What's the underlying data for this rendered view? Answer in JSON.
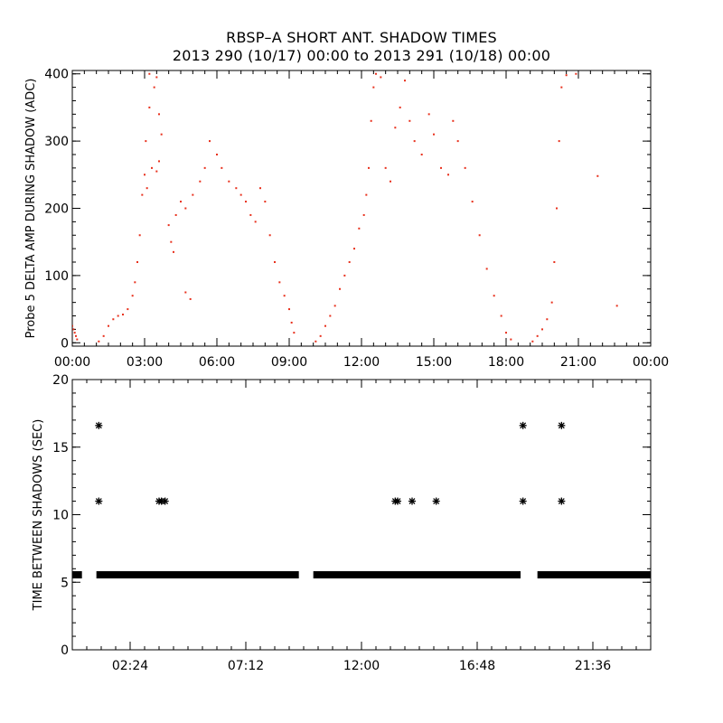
{
  "title": "RBSP–A SHORT ANT. SHADOW TIMES",
  "subtitle": "2013 290 (10/17) 00:00 to 2013 291 (10/18) 00:00",
  "colors": {
    "scatter": "#e8301c",
    "marker": "#000000",
    "axis": "#000000",
    "background": "#ffffff"
  },
  "chart_data": [
    {
      "type": "scatter",
      "title": "RBSP–A SHORT ANT. SHADOW TIMES",
      "ylabel": "Probe 5 DELTA AMP DURING SHADOW (ADC)",
      "xlabel": "",
      "x_unit": "hours since 2013-10-17 00:00",
      "xlim": [
        0,
        24
      ],
      "ylim": [
        -5,
        405
      ],
      "grid": false,
      "x_ticks": [
        0,
        3,
        6,
        9,
        12,
        15,
        18,
        21,
        24
      ],
      "x_tick_labels": [
        "00:00",
        "03:00",
        "06:00",
        "09:00",
        "12:00",
        "15:00",
        "18:00",
        "21:00",
        "00:00"
      ],
      "y_ticks": [
        0,
        100,
        200,
        300,
        400
      ],
      "y_tick_labels": [
        "0",
        "100",
        "200",
        "300",
        "400"
      ],
      "series": [
        {
          "color": "#e8301c",
          "points": [
            [
              0.0,
              25
            ],
            [
              0.05,
              20
            ],
            [
              0.1,
              15
            ],
            [
              0.15,
              10
            ],
            [
              0.2,
              5
            ],
            [
              1.1,
              2
            ],
            [
              1.3,
              10
            ],
            [
              1.5,
              25
            ],
            [
              1.7,
              35
            ],
            [
              1.9,
              40
            ],
            [
              2.1,
              42
            ],
            [
              2.3,
              50
            ],
            [
              2.5,
              70
            ],
            [
              2.6,
              90
            ],
            [
              2.7,
              120
            ],
            [
              2.8,
              160
            ],
            [
              2.9,
              220
            ],
            [
              3.0,
              250
            ],
            [
              3.1,
              230
            ],
            [
              3.3,
              260
            ],
            [
              3.5,
              255
            ],
            [
              3.6,
              270
            ],
            [
              3.05,
              300
            ],
            [
              3.2,
              350
            ],
            [
              3.4,
              380
            ],
            [
              3.6,
              340
            ],
            [
              3.7,
              310
            ],
            [
              3.2,
              400
            ],
            [
              3.5,
              395
            ],
            [
              4.0,
              175
            ],
            [
              4.1,
              150
            ],
            [
              4.2,
              135
            ],
            [
              4.3,
              190
            ],
            [
              4.5,
              210
            ],
            [
              4.7,
              200
            ],
            [
              5.0,
              220
            ],
            [
              5.3,
              240
            ],
            [
              5.5,
              260
            ],
            [
              5.7,
              300
            ],
            [
              6.0,
              280
            ],
            [
              6.2,
              260
            ],
            [
              6.5,
              240
            ],
            [
              6.8,
              230
            ],
            [
              7.0,
              220
            ],
            [
              7.2,
              210
            ],
            [
              7.4,
              190
            ],
            [
              7.6,
              180
            ],
            [
              7.8,
              230
            ],
            [
              8.0,
              210
            ],
            [
              8.2,
              160
            ],
            [
              8.4,
              120
            ],
            [
              8.6,
              90
            ],
            [
              8.8,
              70
            ],
            [
              9.0,
              50
            ],
            [
              9.1,
              30
            ],
            [
              9.2,
              15
            ],
            [
              10.1,
              2
            ],
            [
              10.3,
              10
            ],
            [
              10.5,
              25
            ],
            [
              10.7,
              40
            ],
            [
              10.9,
              55
            ],
            [
              11.1,
              80
            ],
            [
              11.3,
              100
            ],
            [
              11.5,
              120
            ],
            [
              11.7,
              140
            ],
            [
              11.9,
              170
            ],
            [
              12.1,
              190
            ],
            [
              12.2,
              220
            ],
            [
              12.3,
              260
            ],
            [
              12.4,
              330
            ],
            [
              12.5,
              380
            ],
            [
              12.6,
              400
            ],
            [
              12.8,
              395
            ],
            [
              13.0,
              260
            ],
            [
              13.2,
              240
            ],
            [
              13.4,
              320
            ],
            [
              13.6,
              350
            ],
            [
              13.8,
              390
            ],
            [
              14.0,
              330
            ],
            [
              14.2,
              300
            ],
            [
              14.5,
              280
            ],
            [
              14.8,
              340
            ],
            [
              15.0,
              310
            ],
            [
              15.3,
              260
            ],
            [
              15.6,
              250
            ],
            [
              15.8,
              330
            ],
            [
              16.0,
              300
            ],
            [
              16.3,
              260
            ],
            [
              16.6,
              210
            ],
            [
              16.9,
              160
            ],
            [
              17.2,
              110
            ],
            [
              17.5,
              70
            ],
            [
              17.8,
              40
            ],
            [
              18.0,
              15
            ],
            [
              18.2,
              5
            ],
            [
              19.1,
              2
            ],
            [
              19.3,
              10
            ],
            [
              19.5,
              20
            ],
            [
              19.7,
              35
            ],
            [
              19.9,
              60
            ],
            [
              20.0,
              120
            ],
            [
              20.1,
              200
            ],
            [
              20.2,
              300
            ],
            [
              20.3,
              380
            ],
            [
              20.5,
              398
            ],
            [
              20.9,
              400
            ],
            [
              21.8,
              248
            ],
            [
              22.6,
              55
            ],
            [
              4.7,
              75
            ],
            [
              4.9,
              65
            ]
          ]
        }
      ]
    },
    {
      "type": "scatter",
      "title": "",
      "ylabel": "TIME BETWEEN SHADOWS (SEC)",
      "xlabel": "",
      "x_unit": "hours since 2013-10-17 00:00",
      "xlim": [
        0,
        24
      ],
      "ylim": [
        0,
        20
      ],
      "grid": false,
      "x_ticks": [
        2.4,
        7.2,
        12.0,
        16.8,
        21.6
      ],
      "x_tick_labels": [
        "02:24",
        "07:12",
        "12:00",
        "16:48",
        "21:36"
      ],
      "y_ticks": [
        0,
        5,
        10,
        15,
        20
      ],
      "y_tick_labels": [
        "0",
        "5",
        "10",
        "15",
        "20"
      ],
      "series": [
        {
          "name": "",
          "marker": "asterisk",
          "color": "#000000",
          "baseline_value": 5.55,
          "baseline_segments": [
            [
              0.0,
              0.4
            ],
            [
              1.0,
              9.4
            ],
            [
              10.0,
              18.6
            ],
            [
              19.3,
              24.0
            ]
          ],
          "points": [
            [
              1.1,
              16.6
            ],
            [
              1.1,
              11.0
            ],
            [
              3.6,
              11.0
            ],
            [
              3.7,
              11.0
            ],
            [
              3.85,
              11.0
            ],
            [
              13.4,
              11.0
            ],
            [
              13.5,
              11.0
            ],
            [
              14.1,
              11.0
            ],
            [
              15.1,
              11.0
            ],
            [
              18.7,
              16.6
            ],
            [
              18.7,
              11.0
            ],
            [
              20.3,
              16.6
            ],
            [
              20.3,
              11.0
            ]
          ]
        }
      ]
    }
  ]
}
